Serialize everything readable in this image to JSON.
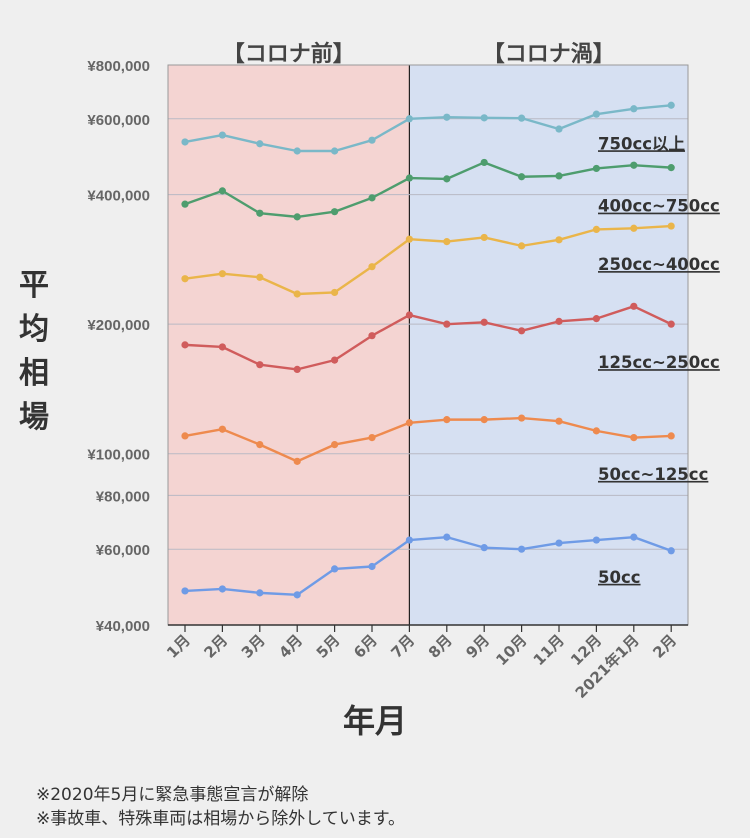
{
  "chart_data": {
    "type": "line",
    "ylabel": "平均相場",
    "xlabel": "年月",
    "y_scale": "log",
    "ylim": [
      40000,
      800000
    ],
    "y_ticks": [
      {
        "value": 800000,
        "label": "¥800,000"
      },
      {
        "value": 600000,
        "label": "¥600,000"
      },
      {
        "value": 400000,
        "label": "¥400,000"
      },
      {
        "value": 200000,
        "label": "¥200,000"
      },
      {
        "value": 100000,
        "label": "¥100,000"
      },
      {
        "value": 80000,
        "label": "¥80,000"
      },
      {
        "value": 60000,
        "label": "¥60,000"
      },
      {
        "value": 40000,
        "label": "¥40,000"
      }
    ],
    "categories": [
      "1月",
      "2月",
      "3月",
      "4月",
      "5月",
      "6月",
      "7月",
      "8月",
      "9月",
      "10月",
      "11月",
      "12月",
      "2021年1月",
      "2月"
    ],
    "regions": [
      {
        "label": "【コロナ前】",
        "from": "1月",
        "to": "7月",
        "color": "#f4d4d2"
      },
      {
        "label": "【コロナ渦】",
        "from": "7月",
        "to": "2月",
        "color": "#d6e0f2"
      }
    ],
    "series": [
      {
        "name": "750cc以上",
        "color": "#7ab8c8",
        "values": [
          530000,
          550000,
          525000,
          505000,
          505000,
          535000,
          600000,
          605000,
          603000,
          602000,
          568000,
          615000,
          633000,
          645000
        ]
      },
      {
        "name": "400cc~750cc",
        "color": "#4e9d6e",
        "values": [
          380000,
          408000,
          362000,
          355000,
          365000,
          393000,
          437000,
          435000,
          475000,
          440000,
          442000,
          460000,
          468000,
          462000
        ]
      },
      {
        "name": "250cc~400cc",
        "color": "#eab54a",
        "values": [
          255000,
          262000,
          257000,
          235000,
          237000,
          272000,
          315000,
          311000,
          318000,
          304000,
          314000,
          332000,
          334000,
          338000
        ]
      },
      {
        "name": "125cc~250cc",
        "color": "#d05c5c",
        "values": [
          179000,
          177000,
          161000,
          157000,
          165000,
          188000,
          210000,
          200000,
          202000,
          193000,
          203000,
          206000,
          220000,
          200000
        ]
      },
      {
        "name": "50cc~125cc",
        "color": "#ee8a4e",
        "values": [
          110000,
          114000,
          105000,
          96000,
          105000,
          109000,
          118000,
          120000,
          120000,
          121000,
          119000,
          113000,
          109000,
          110000
        ]
      },
      {
        "name": "50cc",
        "color": "#6f9be6",
        "values": [
          48000,
          48500,
          47500,
          47000,
          54000,
          54700,
          63000,
          64000,
          60500,
          60000,
          62000,
          63000,
          64000,
          59500
        ]
      }
    ]
  },
  "notes": [
    "※2020年5月に緊急事態宣言が解除",
    "※事故車、特殊車両は相場から除外しています。"
  ]
}
